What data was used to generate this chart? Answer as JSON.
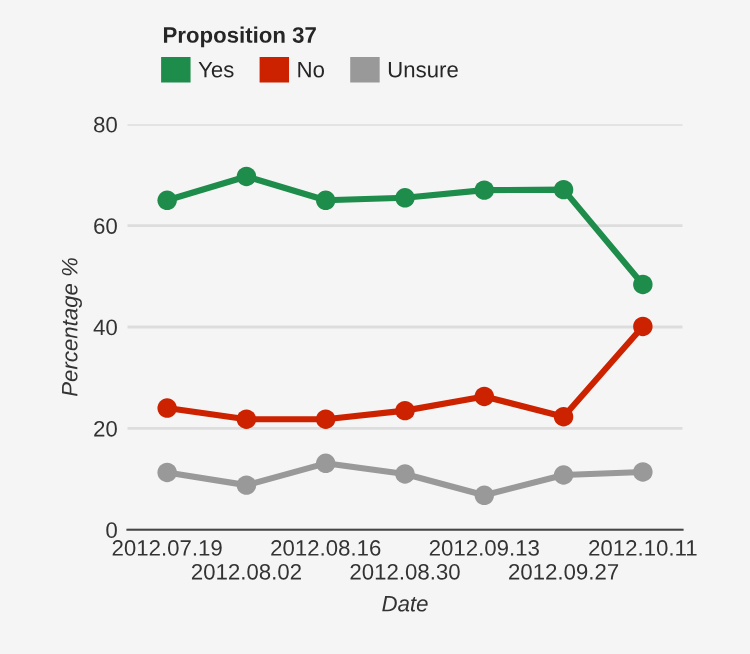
{
  "chart_data": {
    "type": "line",
    "legend_title": "Proposition 37",
    "xlabel": "Date",
    "ylabel": "Percentage %",
    "categories": [
      "2012.07.19",
      "2012.08.02",
      "2012.08.16",
      "2012.08.30",
      "2012.09.13",
      "2012.09.27",
      "2012.10.11"
    ],
    "series": [
      {
        "name": "Yes",
        "color": "#1e8c4b",
        "values": [
          65,
          69.7,
          65,
          65.5,
          67,
          67.1,
          48.4
        ]
      },
      {
        "name": "No",
        "color": "#cc2200",
        "values": [
          24,
          21.8,
          21.8,
          23.5,
          26.3,
          22.3,
          40.1
        ]
      },
      {
        "name": "Unsure",
        "color": "#999999",
        "values": [
          11.3,
          8.8,
          13.1,
          11,
          6.8,
          10.8,
          11.4
        ]
      }
    ],
    "ylim": [
      0,
      80
    ],
    "yticks": [
      0,
      20,
      40,
      60,
      80
    ],
    "grid": "y",
    "legend": "top left",
    "marker": "circle",
    "line_style": "solid"
  }
}
